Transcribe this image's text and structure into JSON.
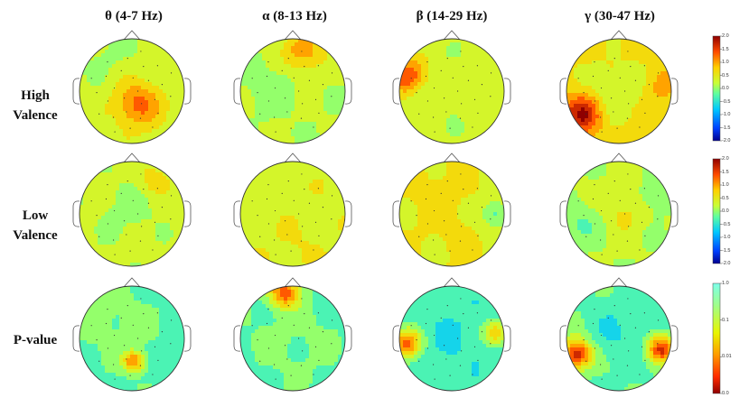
{
  "bands": [
    "θ (4-7 Hz)",
    "α (8-13 Hz)",
    "β (14-29 Hz)",
    "γ (30-47 Hz)"
  ],
  "rows": [
    {
      "line1": "High",
      "line2": "Valence"
    },
    {
      "line1": "Low",
      "line2": "Valence"
    },
    {
      "line1": "P-value",
      "line2": ""
    }
  ],
  "colorbars": [
    {
      "scale": "linear",
      "ticks": [
        "2.0",
        "1.5",
        "1.0",
        "0.5",
        "0.0",
        "-0.5",
        "-1.0",
        "-1.5",
        "-2.0"
      ]
    },
    {
      "scale": "linear",
      "ticks": [
        "2.0",
        "1.5",
        "1.0",
        "0.5",
        "0.0",
        "-0.5",
        "-1.0",
        "-1.5",
        "-2.0"
      ]
    },
    {
      "scale": "log",
      "ticks": [
        "1.0",
        "0.1",
        "0.01",
        "0.0"
      ]
    }
  ],
  "maps": [
    [
      {
        "base": 0.58,
        "blobs": [
          [
            0.55,
            0.62,
            0.16,
            0.25
          ],
          [
            0.35,
            0.2,
            0.25,
            -0.05
          ]
        ]
      },
      {
        "base": 0.55,
        "blobs": [
          [
            0.6,
            0.12,
            0.14,
            0.22
          ],
          [
            0.3,
            0.45,
            0.18,
            -0.06
          ]
        ]
      },
      {
        "base": 0.56,
        "blobs": [
          [
            0.08,
            0.35,
            0.12,
            0.3
          ],
          [
            0.8,
            0.4,
            0.2,
            0.05
          ]
        ]
      },
      {
        "base": 0.66,
        "blobs": [
          [
            0.15,
            0.72,
            0.13,
            0.32
          ],
          [
            0.9,
            0.45,
            0.1,
            0.1
          ],
          [
            0.45,
            0.5,
            0.22,
            -0.1
          ]
        ]
      }
    ],
    [
      {
        "base": 0.57,
        "blobs": [
          [
            0.72,
            0.18,
            0.1,
            0.12
          ],
          [
            0.45,
            0.45,
            0.2,
            -0.06
          ]
        ]
      },
      {
        "base": 0.6,
        "blobs": [
          [
            0.5,
            0.8,
            0.2,
            0.03
          ],
          [
            0.25,
            0.3,
            0.2,
            -0.03
          ]
        ]
      },
      {
        "base": 0.62,
        "blobs": [
          [
            0.35,
            0.3,
            0.2,
            0.04
          ],
          [
            0.92,
            0.5,
            0.1,
            -0.2
          ],
          [
            0.5,
            0.7,
            0.2,
            0.02
          ]
        ]
      },
      {
        "base": 0.55,
        "blobs": [
          [
            0.15,
            0.6,
            0.12,
            -0.1
          ],
          [
            0.55,
            0.5,
            0.12,
            0.1
          ],
          [
            0.85,
            0.35,
            0.1,
            -0.08
          ]
        ]
      }
    ],
    [
      {
        "base": 0.44,
        "blobs": [
          [
            0.52,
            0.72,
            0.07,
            0.35
          ],
          [
            0.35,
            0.35,
            0.25,
            0.05
          ],
          [
            0.92,
            0.7,
            0.1,
            -0.08
          ]
        ]
      },
      {
        "base": 0.44,
        "blobs": [
          [
            0.42,
            0.06,
            0.1,
            0.4
          ],
          [
            0.5,
            0.5,
            0.3,
            0.04
          ]
        ]
      },
      {
        "base": 0.42,
        "blobs": [
          [
            0.07,
            0.55,
            0.1,
            0.4
          ],
          [
            0.92,
            0.45,
            0.08,
            0.3
          ],
          [
            0.5,
            0.5,
            0.25,
            -0.05
          ]
        ]
      },
      {
        "base": 0.45,
        "blobs": [
          [
            0.1,
            0.65,
            0.1,
            0.5
          ],
          [
            0.9,
            0.6,
            0.09,
            0.45
          ],
          [
            0.5,
            0.45,
            0.2,
            -0.08
          ]
        ]
      }
    ]
  ]
}
